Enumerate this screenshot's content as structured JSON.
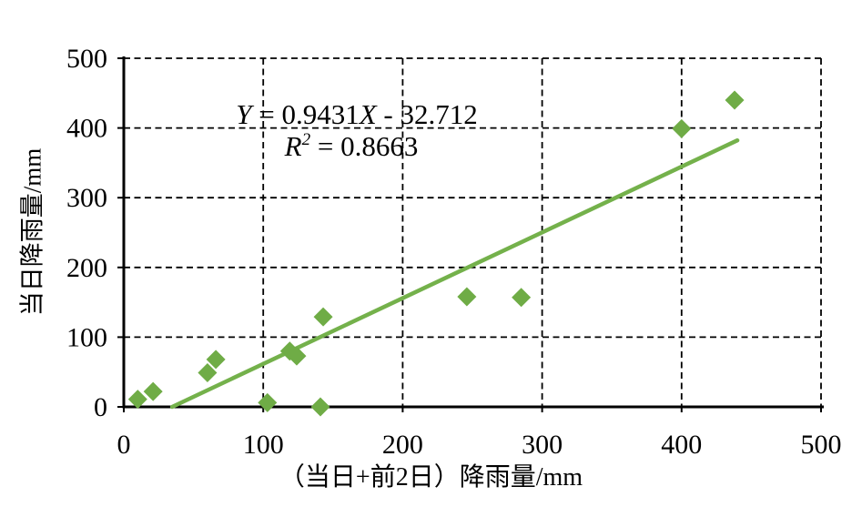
{
  "chart_data": {
    "type": "scatter",
    "title": "",
    "xlabel": "（当日+前2日）降雨量/mm",
    "ylabel": "当日降雨量/mm",
    "xlim": [
      0,
      500
    ],
    "ylim": [
      0,
      500
    ],
    "xticks": [
      0,
      100,
      200,
      300,
      400,
      500
    ],
    "yticks": [
      0,
      100,
      200,
      300,
      400,
      500
    ],
    "grid": "dashed",
    "legend": "none",
    "marker": "diamond",
    "points": [
      [
        10,
        11
      ],
      [
        21,
        22
      ],
      [
        60,
        49
      ],
      [
        66,
        68
      ],
      [
        103,
        6
      ],
      [
        119,
        80
      ],
      [
        124,
        73
      ],
      [
        141,
        0
      ],
      [
        143,
        129
      ],
      [
        246,
        158
      ],
      [
        285,
        157
      ],
      [
        400,
        399
      ],
      [
        438,
        440
      ]
    ],
    "trendline": {
      "equation": "Y = 0.9431X - 32.712",
      "r_squared": "R² = 0.8663",
      "slope": 0.9431,
      "intercept": -32.712,
      "x_range": [
        34.7,
        440
      ]
    },
    "annotation": {
      "lines": [
        {
          "parts": [
            {
              "text": "Y",
              "italic": true
            },
            {
              "text": " = 0.9431",
              "italic": false
            },
            {
              "text": "X",
              "italic": true
            },
            {
              "text": " - 32.712",
              "italic": false
            }
          ]
        },
        {
          "parts": [
            {
              "text": "R",
              "italic": true
            },
            {
              "text": "2",
              "italic": true,
              "super": true
            },
            {
              "text": " = 0.8663",
              "italic": false
            }
          ]
        }
      ]
    },
    "colors": {
      "marker": "#6FAC46",
      "trendline": "#74B14B",
      "axis": "#000000",
      "grid": "#000000",
      "text": "#000000"
    }
  }
}
